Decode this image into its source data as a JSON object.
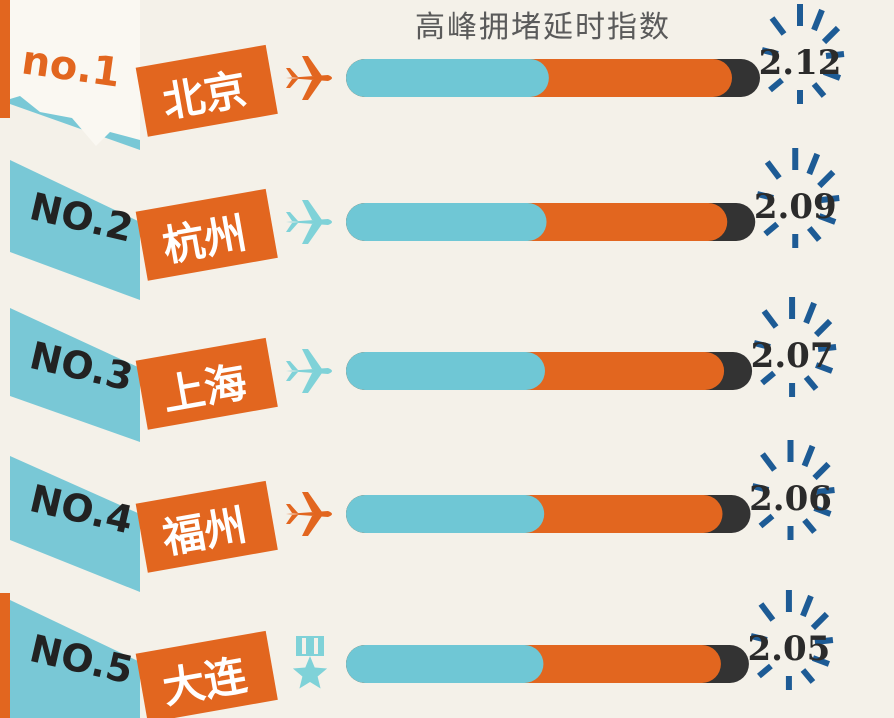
{
  "chart_data": {
    "type": "bar",
    "title": "高峰拥堵延时指数",
    "categories": [
      "北京",
      "杭州",
      "上海",
      "福州",
      "大连"
    ],
    "rank_labels": [
      "no.1",
      "NO.2",
      "NO.3",
      "NO.4",
      "NO.5"
    ],
    "values": [
      2.12,
      2.09,
      2.07,
      2.06,
      2.05
    ],
    "value_labels": [
      "2.12",
      "2.09",
      "2.07",
      "2.06",
      "2.05"
    ],
    "icons": [
      "airplane-icon",
      "airplane-icon",
      "airplane-icon",
      "airplane-icon",
      "medal-icon"
    ],
    "colors": {
      "teal": "#6fc7d5",
      "orange": "#e2661f",
      "dark": "#333333",
      "burst": "#1d5b95",
      "paper": "#f4f1e9",
      "wall": "#79c8d6"
    }
  }
}
